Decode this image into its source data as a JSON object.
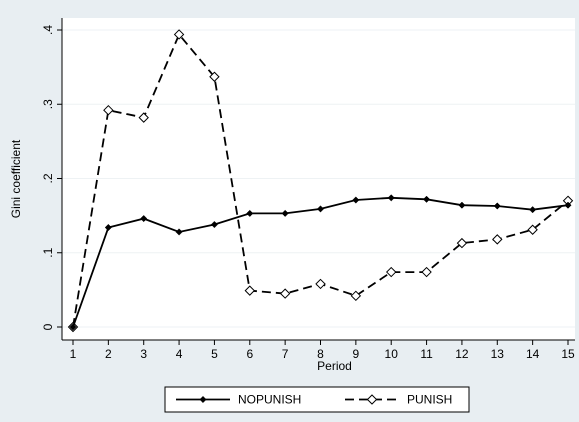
{
  "chart_data": {
    "type": "line",
    "xlabel": "Period",
    "ylabel": "Gini coefficient",
    "x": [
      1,
      2,
      3,
      4,
      5,
      6,
      7,
      8,
      9,
      10,
      11,
      12,
      13,
      14,
      15
    ],
    "xticks": [
      "1",
      "2",
      "3",
      "4",
      "5",
      "6",
      "7",
      "8",
      "9",
      "10",
      "11",
      "12",
      "13",
      "14",
      "15"
    ],
    "yticks": [
      {
        "value": 0,
        "label": "0"
      },
      {
        "value": 0.1,
        "label": ".1"
      },
      {
        "value": 0.2,
        "label": ".2"
      },
      {
        "value": 0.3,
        "label": ".3"
      },
      {
        "value": 0.4,
        "label": ".4"
      }
    ],
    "xlim": [
      1,
      15
    ],
    "ylim": [
      0,
      0.4
    ],
    "grid": true,
    "legend_position": "bottom",
    "series": [
      {
        "name": "NOPUNISH",
        "line": "solid",
        "marker": "filled-diamond",
        "values": [
          0.0,
          0.134,
          0.146,
          0.128,
          0.138,
          0.153,
          0.153,
          0.159,
          0.171,
          0.174,
          0.172,
          0.164,
          0.163,
          0.158,
          0.164
        ]
      },
      {
        "name": "PUNISH",
        "line": "dashed",
        "marker": "hollow-diamond",
        "values": [
          0.0,
          0.292,
          0.282,
          0.394,
          0.337,
          0.049,
          0.045,
          0.058,
          0.042,
          0.074,
          0.074,
          0.113,
          0.118,
          0.131,
          0.17
        ]
      }
    ],
    "colors": {
      "background": "#e8eef2",
      "plot_background": "#ffffff",
      "grid": "#eef2f4",
      "line": "#000000"
    }
  }
}
